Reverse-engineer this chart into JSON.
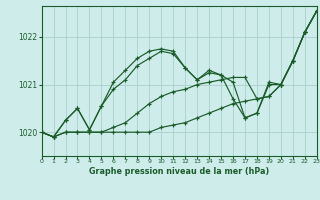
{
  "title": "Graphe pression niveau de la mer (hPa)",
  "background_color": "#ceecea",
  "grid_color": "#aacfcc",
  "line_color": "#1a5c2a",
  "xlim": [
    0,
    23
  ],
  "ylim": [
    1019.5,
    1022.65
  ],
  "yticks": [
    1020,
    1021,
    1022
  ],
  "xticks": [
    0,
    1,
    2,
    3,
    4,
    5,
    6,
    7,
    8,
    9,
    10,
    11,
    12,
    13,
    14,
    15,
    16,
    17,
    18,
    19,
    20,
    21,
    22,
    23
  ],
  "series": [
    [
      1020.0,
      1019.9,
      1020.0,
      1020.0,
      1020.0,
      1020.0,
      1020.0,
      1020.0,
      1020.0,
      1020.0,
      1020.1,
      1020.15,
      1020.2,
      1020.3,
      1020.4,
      1020.5,
      1020.6,
      1020.65,
      1020.7,
      1020.75,
      1021.0,
      1021.5,
      1022.1,
      1022.55
    ],
    [
      1020.0,
      1019.9,
      1020.0,
      1020.0,
      1020.0,
      1020.0,
      1020.1,
      1020.2,
      1020.4,
      1020.6,
      1020.75,
      1020.85,
      1020.9,
      1021.0,
      1021.05,
      1021.1,
      1021.15,
      1021.15,
      1020.7,
      1020.75,
      1021.0,
      1021.5,
      1022.1,
      1022.55
    ],
    [
      1020.0,
      1019.9,
      1020.25,
      1020.5,
      1020.05,
      1020.55,
      1020.9,
      1021.1,
      1021.4,
      1021.55,
      1021.7,
      1021.65,
      1021.35,
      1021.1,
      1021.25,
      1021.2,
      1020.7,
      1020.3,
      1020.4,
      1021.0,
      1021.0,
      1021.5,
      1022.1,
      1022.55
    ],
    [
      1020.0,
      1019.9,
      1020.25,
      1020.5,
      1020.05,
      1020.55,
      1021.05,
      1021.3,
      1021.55,
      1021.7,
      1021.75,
      1021.7,
      1021.35,
      1021.1,
      1021.3,
      1021.2,
      1021.05,
      1020.3,
      1020.4,
      1021.05,
      1021.0,
      1021.5,
      1022.1,
      1022.55
    ]
  ]
}
